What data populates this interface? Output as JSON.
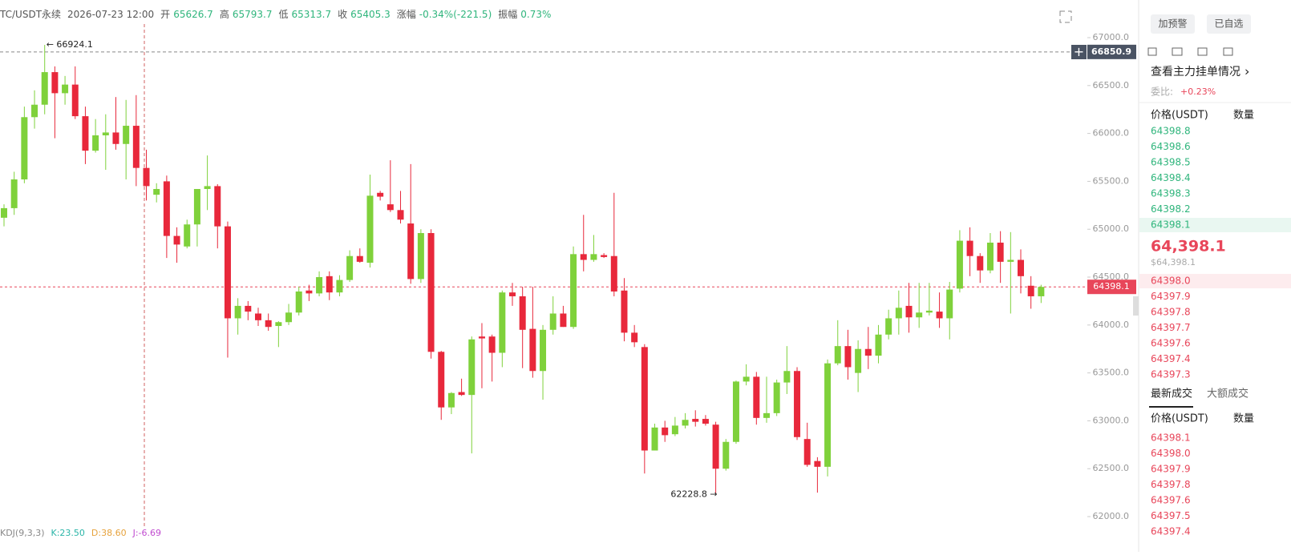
{
  "header": {
    "symbol": "TC/USDT永续",
    "time": "2026-07-23 12:00",
    "fields": [
      {
        "label": "开",
        "value": "65626.7"
      },
      {
        "label": "高",
        "value": "65793.7"
      },
      {
        "label": "低",
        "value": "65313.7"
      },
      {
        "label": "收",
        "value": "65405.3"
      },
      {
        "label": "涨幅",
        "value": "-0.34%(-221.5)"
      },
      {
        "label": "振幅",
        "value": "0.73%"
      }
    ]
  },
  "chart_data": {
    "type": "candlestick",
    "up_color": "#7fd13b",
    "down_color": "#e8283b",
    "ylim": [
      61875,
      67393
    ],
    "yticks": [
      {
        "value": 62000,
        "label": "62000.0"
      },
      {
        "value": 62500,
        "label": "62500.0"
      },
      {
        "value": 63000,
        "label": "63000.0"
      },
      {
        "value": 63500,
        "label": "63500.0"
      },
      {
        "value": 64000,
        "label": "64000.0"
      },
      {
        "value": 64500,
        "label": "64500.0"
      },
      {
        "value": 65000,
        "label": "65000.0"
      },
      {
        "value": 65500,
        "label": "65500.0"
      },
      {
        "value": 66000,
        "label": "66000.0"
      },
      {
        "value": 66500,
        "label": "66500.0"
      },
      {
        "value": 67000,
        "label": "67000.0"
      }
    ],
    "crosshair": 66850.9,
    "last_price": 64398.1,
    "max_label": "← 66924.1",
    "min_label": "62228.8 →",
    "open": [
      65120,
      65220,
      65520,
      66170,
      66300,
      66640,
      66420,
      66510,
      66180,
      65820,
      65980,
      66010,
      65890,
      66080,
      65640,
      65360,
      65500,
      64930,
      64820,
      65050,
      65420,
      65450,
      65030,
      64070,
      64200,
      64120,
      64050,
      63990,
      64030,
      64130,
      64360,
      64330,
      64510,
      64340,
      64470,
      64720,
      64650,
      65380,
      65260,
      65200,
      65060,
      64480,
      64960,
      63720,
      63140,
      63300,
      63270,
      63880,
      63880,
      63710,
      64340,
      64300,
      63960,
      63520,
      63950,
      64120,
      63980,
      64740,
      64680,
      64730,
      64720,
      64360,
      63920,
      63770,
      62690,
      62930,
      62860,
      62950,
      63020,
      63020,
      62960,
      62500,
      62780,
      63410,
      63460,
      63030,
      63080,
      63400,
      63520,
      62810,
      62580,
      62520,
      63600,
      63780,
      63500,
      63750,
      63680,
      63900,
      64070,
      64200,
      64080,
      64130,
      64140,
      64070,
      64380,
      64880,
      64720,
      64570,
      64860,
      64660,
      64680,
      64410,
      64300
    ],
    "high": [
      65260,
      65600,
      66280,
      66450,
      66924.1,
      66700,
      66600,
      66700,
      66280,
      66150,
      66200,
      66380,
      66350,
      66400,
      65830,
      65480,
      65560,
      65020,
      65100,
      65420,
      65770,
      65470,
      65080,
      64280,
      64250,
      64180,
      64120,
      64040,
      64220,
      64400,
      64420,
      64560,
      64560,
      64520,
      64780,
      64800,
      65570,
      65400,
      65720,
      65400,
      65680,
      65000,
      65000,
      63730,
      63300,
      63440,
      63880,
      64020,
      63900,
      64360,
      64440,
      64400,
      64400,
      64000,
      64300,
      64200,
      64820,
      65150,
      64940,
      64750,
      65380,
      64490,
      64000,
      63800,
      62970,
      63000,
      63040,
      63080,
      63110,
      63060,
      62990,
      62810,
      63420,
      63590,
      63510,
      63460,
      63430,
      63780,
      63560,
      62980,
      62620,
      63640,
      64050,
      63950,
      63840,
      63980,
      64000,
      64160,
      64360,
      64440,
      64440,
      64440,
      64340,
      64450,
      64990,
      65020,
      64750,
      64960,
      64980,
      64970,
      64790,
      64510,
      64420
    ],
    "low": [
      65030,
      65150,
      65480,
      66050,
      66200,
      65950,
      66300,
      66150,
      65680,
      65800,
      65620,
      65830,
      65520,
      65450,
      65300,
      65280,
      64700,
      64650,
      64800,
      64820,
      65200,
      64800,
      63660,
      63900,
      64050,
      63990,
      63940,
      63770,
      64000,
      64100,
      64250,
      64300,
      64260,
      64300,
      64450,
      64650,
      64600,
      65300,
      65180,
      65060,
      64430,
      64440,
      63650,
      63010,
      63070,
      63260,
      62660,
      63340,
      63410,
      63560,
      64200,
      63550,
      63450,
      63220,
      63900,
      63980,
      63960,
      64560,
      64660,
      64700,
      64300,
      63830,
      63770,
      62450,
      62690,
      62780,
      62840,
      62920,
      62940,
      62950,
      62228.8,
      62480,
      62760,
      63370,
      62960,
      62980,
      63050,
      63280,
      62800,
      62520,
      62250,
      62420,
      63580,
      63430,
      63300,
      63540,
      63600,
      63850,
      63900,
      63920,
      63970,
      64100,
      63970,
      63850,
      64340,
      64510,
      64440,
      64540,
      64440,
      64120,
      64330,
      64170,
      64230
    ],
    "close": [
      65220,
      65520,
      66170,
      66300,
      66640,
      66420,
      66510,
      66180,
      65820,
      65980,
      66010,
      65890,
      66080,
      65640,
      65450,
      65420,
      64930,
      64840,
      65050,
      65420,
      65450,
      65030,
      64070,
      64200,
      64140,
      64050,
      63980,
      64030,
      64130,
      64350,
      64330,
      64500,
      64340,
      64470,
      64720,
      64660,
      65350,
      65340,
      65200,
      65100,
      64480,
      64960,
      63720,
      63140,
      63290,
      63270,
      63850,
      63860,
      63710,
      64340,
      64300,
      63950,
      63520,
      63950,
      64120,
      63980,
      64740,
      64680,
      64740,
      64710,
      64350,
      63920,
      63820,
      62690,
      62930,
      62850,
      62950,
      63010,
      62990,
      62970,
      62500,
      62780,
      63410,
      63460,
      63030,
      63080,
      63400,
      63520,
      62830,
      62540,
      62520,
      63600,
      63780,
      63560,
      63750,
      63680,
      63900,
      64070,
      64180,
      64080,
      64130,
      64150,
      64070,
      64370,
      64880,
      64720,
      64570,
      64860,
      64660,
      64680,
      64510,
      64300,
      64398.1
    ]
  },
  "indicator": {
    "name": "KDJ(9,3,3)",
    "k": "K:23.50",
    "d": "D:38.60",
    "j": "J:-6.69"
  },
  "panel": {
    "buttons": [
      "加预警",
      "已自选"
    ],
    "depth_link": "查看主力挂单情况",
    "ratio_label": "委比:",
    "ratio": "+0.23%",
    "book_header": [
      "价格(USDT)",
      "数量"
    ],
    "asks": [
      "64398.8",
      "64398.6",
      "64398.5",
      "64398.4",
      "64398.3",
      "64398.2",
      "64398.1"
    ],
    "last": "64,398.1",
    "last_usd": "$64,398.1",
    "bids": [
      "64398.0",
      "64397.9",
      "64397.8",
      "64397.7",
      "64397.6",
      "64397.4",
      "64397.3"
    ],
    "tabs": [
      "最新成交",
      "大额成交"
    ],
    "trades_header": [
      "价格(USDT)",
      "数量"
    ],
    "trades": [
      "64398.1",
      "64398.0",
      "64397.9",
      "64397.8",
      "64397.6",
      "64397.5",
      "64397.4"
    ]
  }
}
